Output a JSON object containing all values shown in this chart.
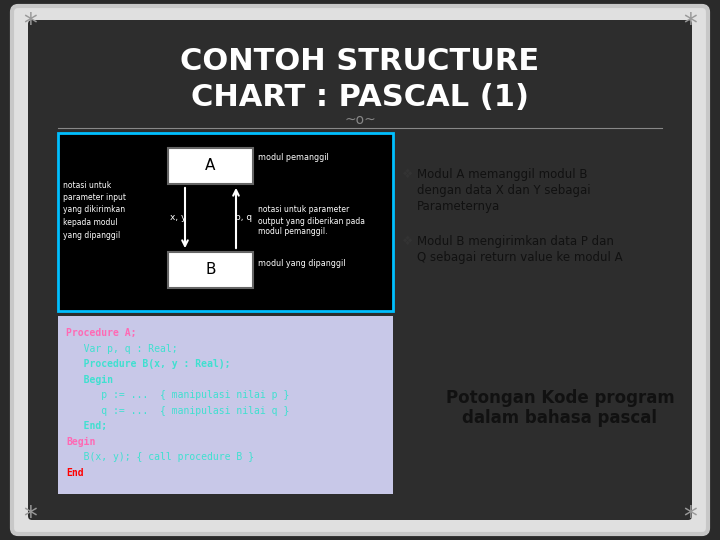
{
  "title_line1": "CONTOH STRUCTURE",
  "title_line2": "CHART : PASCAL (1)",
  "title_color": "#ffffff",
  "bg_color": "#2a2a2a",
  "frame_color": "#c8c8c8",
  "diagram_bg": "#000000",
  "diagram_border": "#00bfff",
  "code_bg": "#c8c8e8",
  "bullet1_line1": "Modul A memanggil modul B",
  "bullet1_line2": "dengan data X dan Y sebagai",
  "bullet1_line3": "Parameternya",
  "bullet2_line1": "Modul B mengirimkan data P dan",
  "bullet2_line2": "Q sebagai return value ke modul A",
  "bullet_color": "#111111",
  "caption_line1": "Potongan Kode program",
  "caption_line2": "dalam bahasa pascal",
  "caption_color": "#111111",
  "code_lines": [
    {
      "text": "Procedure A;",
      "color": "#ff69b4",
      "bold": true
    },
    {
      "text": "   Var p, q : Real;",
      "color": "#40e0d0",
      "bold": false
    },
    {
      "text": "   Procedure B(x, y : Real);",
      "color": "#40e0d0",
      "bold": true
    },
    {
      "text": "   Begin",
      "color": "#40e0d0",
      "bold": true
    },
    {
      "text": "      p := ...  { manipulasi nilai p }",
      "color": "#40e0d0",
      "bold": false
    },
    {
      "text": "      q := ...  { manipulasi nilai q }",
      "color": "#40e0d0",
      "bold": false
    },
    {
      "text": "   End;",
      "color": "#40e0d0",
      "bold": true
    },
    {
      "text": "Begin",
      "color": "#ff69b4",
      "bold": true
    },
    {
      "text": "   B(x, y); { call procedure B }",
      "color": "#40e0d0",
      "bold": false
    },
    {
      "text": "End",
      "color": "#ff0000",
      "bold": true
    }
  ],
  "diag_box_a_label": "A",
  "diag_box_b_label": "B",
  "diag_arrow_label_xy": "x, y",
  "diag_arrow_label_pq": "p, q",
  "diag_label_caller": "modul pemanggil",
  "diag_label_called": "modul yang dipanggil",
  "diag_left_text": "notasi untuk\nparameter input\nyang dikirimkan\nkepada modul\nyang dipanggil",
  "diag_right_text_top": "notasi untuk parameter",
  "diag_right_text_mid": "output yang diberikan pada",
  "diag_right_text_bot": "modul pemanggil.",
  "ornament_color": "#888888"
}
